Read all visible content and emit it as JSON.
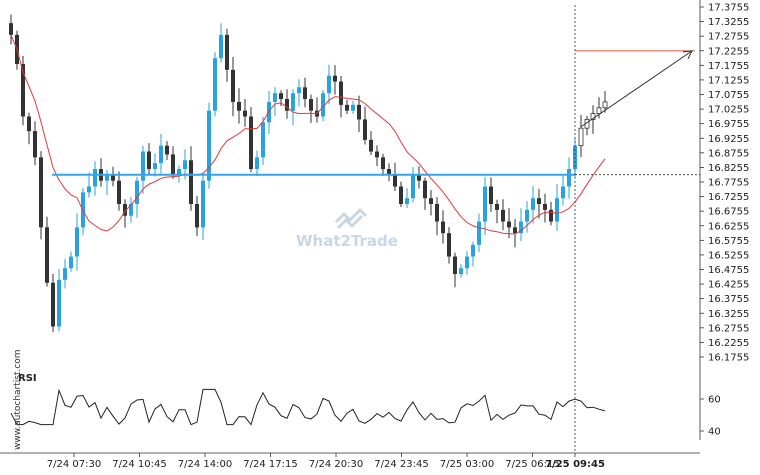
{
  "chart_data": {
    "type": "candlestick",
    "watermark": "What2Trade",
    "credit": "www.autochartist.com",
    "rsi_label": "RSI",
    "price_axis": {
      "min": 16.1755,
      "max": 17.3755,
      "ticks": [
        "17.3755",
        "17.3255",
        "17.2755",
        "17.2255",
        "17.1755",
        "17.1255",
        "17.0755",
        "17.0255",
        "16.9755",
        "16.9255",
        "16.8755",
        "16.8255",
        "16.7755",
        "16.7255",
        "16.6755",
        "16.6255",
        "16.5755",
        "16.5255",
        "16.4755",
        "16.4255",
        "16.3755",
        "16.3255",
        "16.2755",
        "16.2255",
        "16.1755"
      ]
    },
    "rsi_axis": {
      "ticks": [
        "60",
        "40"
      ]
    },
    "x_ticks": [
      "7/24 07:30",
      "7/24 10:45",
      "7/24 14:00",
      "7/24 17:15",
      "7/24 20:30",
      "7/24 23:45",
      "7/25 03:00",
      "7/25 06:15",
      "7/25 09:45"
    ],
    "current_time_label": "7/25 09:45",
    "support_level": 16.8005,
    "target_level": 17.225,
    "projection": {
      "from": 16.965,
      "to": 17.225
    },
    "closes": [
      17.28,
      17.18,
      17.0,
      16.95,
      16.86,
      16.62,
      16.43,
      16.28,
      16.44,
      16.48,
      16.52,
      16.62,
      16.74,
      16.76,
      16.82,
      16.78,
      16.8,
      16.78,
      16.7,
      16.66,
      16.7,
      16.78,
      16.88,
      16.82,
      16.84,
      16.9,
      16.87,
      16.8,
      16.82,
      16.85,
      16.7,
      16.62,
      16.78,
      17.02,
      17.2,
      17.28,
      17.16,
      17.05,
      17.02,
      17.0,
      16.82,
      16.86,
      16.98,
      17.05,
      17.08,
      17.06,
      17.02,
      17.08,
      17.1,
      17.06,
      17.02,
      17.0,
      17.08,
      17.14,
      17.12,
      17.04,
      17.02,
      17.04,
      16.99,
      16.92,
      16.88,
      16.86,
      16.82,
      16.8,
      16.76,
      16.7,
      16.72,
      16.8,
      16.78,
      16.72,
      16.7,
      16.64,
      16.6,
      16.52,
      16.46,
      16.48,
      16.52,
      16.56,
      16.64,
      16.76,
      16.7,
      16.68,
      16.64,
      16.62,
      16.6,
      16.64,
      16.68,
      16.72,
      16.7,
      16.68,
      16.64,
      16.72,
      16.76,
      16.82,
      16.9,
      16.96,
      16.99,
      17.01,
      17.03,
      17.05
    ]
  }
}
